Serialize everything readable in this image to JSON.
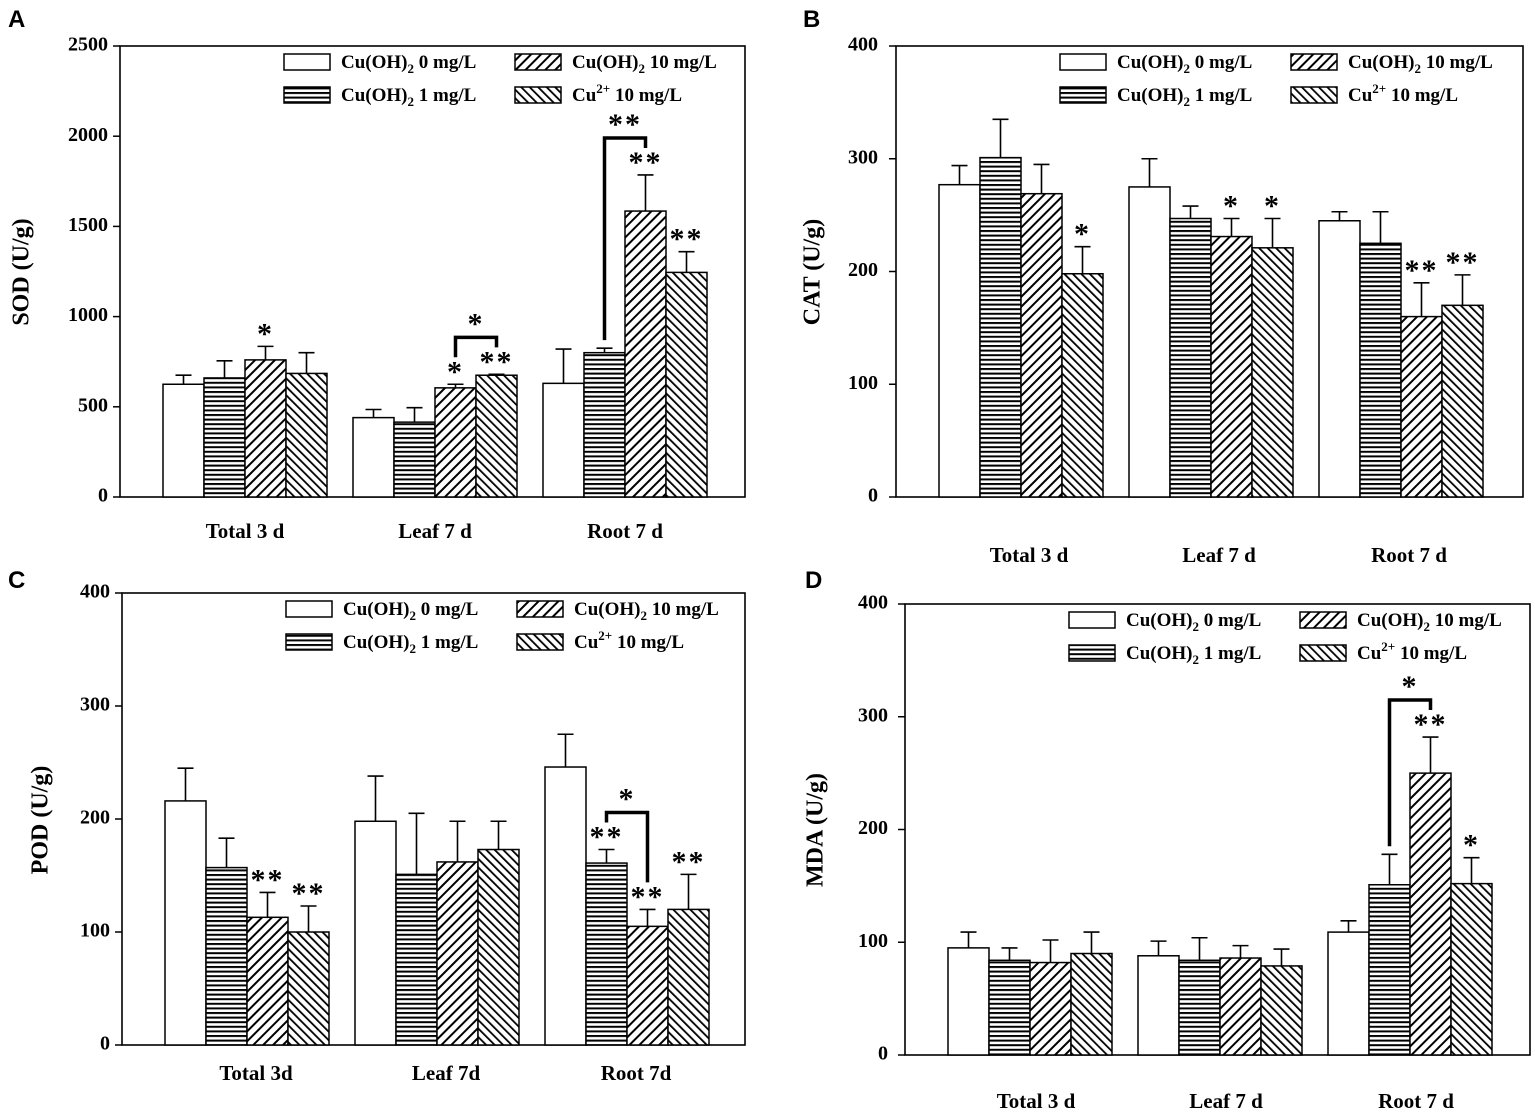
{
  "chart_data": [
    {
      "panel": "A",
      "type": "bar",
      "ylabel": "SOD (U/g)",
      "ylim": [
        0,
        2500
      ],
      "yticks": [
        0,
        500,
        1000,
        1500,
        2000,
        2500
      ],
      "grid": false,
      "categories": [
        "Total 3 d",
        "Leaf 7 d",
        "Root 7 d"
      ],
      "series": [
        {
          "label": {
            "main": "Cu(OH)",
            "sub": "2",
            "tail": " 0 mg/L"
          },
          "values": [
            625,
            440,
            630
          ],
          "errors": [
            50,
            45,
            190
          ],
          "marks": [
            null,
            null,
            null
          ]
        },
        {
          "label": {
            "main": "Cu(OH)",
            "sub": "2",
            "tail": " 1 mg/L"
          },
          "values": [
            660,
            415,
            800
          ],
          "errors": [
            95,
            80,
            25
          ],
          "marks": [
            null,
            null,
            null
          ]
        },
        {
          "label": {
            "main": "Cu(OH)",
            "sub": "2",
            "tail": " 10 mg/L"
          },
          "values": [
            760,
            605,
            1585
          ],
          "errors": [
            75,
            20,
            200
          ],
          "marks": [
            "*",
            "*",
            "**"
          ]
        },
        {
          "label": {
            "main": "Cu",
            "sup": "2+",
            "tail": " 10 mg/L"
          },
          "values": [
            685,
            675,
            1245
          ],
          "errors": [
            115,
            5,
            115
          ],
          "marks": [
            null,
            "**",
            "**"
          ]
        }
      ],
      "brackets": [
        {
          "category": 1,
          "from": 2,
          "to": 3,
          "label": "*"
        },
        {
          "category": 2,
          "from": 1,
          "to": 2,
          "label": "**"
        }
      ]
    },
    {
      "panel": "B",
      "type": "bar",
      "ylabel": "CAT (U/g)",
      "ylim": [
        0,
        400
      ],
      "yticks": [
        0,
        100,
        200,
        300,
        400
      ],
      "grid": false,
      "categories": [
        "Total 3 d",
        "Leaf 7 d",
        "Root 7 d"
      ],
      "series": [
        {
          "label": {
            "main": "Cu(OH)",
            "sub": "2",
            "tail": " 0 mg/L"
          },
          "values": [
            277,
            275,
            245
          ],
          "errors": [
            17,
            25,
            8
          ],
          "marks": [
            null,
            null,
            null
          ]
        },
        {
          "label": {
            "main": "Cu(OH)",
            "sub": "2",
            "tail": " 1 mg/L"
          },
          "values": [
            301,
            247,
            225
          ],
          "errors": [
            34,
            11,
            28
          ],
          "marks": [
            null,
            null,
            null
          ]
        },
        {
          "label": {
            "main": "Cu(OH)",
            "sub": "2",
            "tail": " 10 mg/L"
          },
          "values": [
            269,
            231,
            160
          ],
          "errors": [
            26,
            16,
            30
          ],
          "marks": [
            null,
            "*",
            "**"
          ]
        },
        {
          "label": {
            "main": "Cu",
            "sup": "2+",
            "tail": " 10 mg/L"
          },
          "values": [
            198,
            221,
            170
          ],
          "errors": [
            24,
            26,
            27
          ],
          "marks": [
            "*",
            "*",
            "**"
          ]
        }
      ],
      "brackets": []
    },
    {
      "panel": "C",
      "type": "bar",
      "ylabel": "POD (U/g)",
      "ylim": [
        0,
        400
      ],
      "yticks": [
        0,
        100,
        200,
        300,
        400
      ],
      "grid": false,
      "categories": [
        "Total 3d",
        "Leaf 7d",
        "Root 7d"
      ],
      "series": [
        {
          "label": {
            "main": "Cu(OH)",
            "sub": "2",
            "tail": " 0 mg/L"
          },
          "values": [
            216,
            198,
            246
          ],
          "errors": [
            29,
            40,
            29
          ],
          "marks": [
            null,
            null,
            null
          ]
        },
        {
          "label": {
            "main": "Cu(OH)",
            "sub": "2",
            "tail": " 1 mg/L"
          },
          "values": [
            157,
            151,
            161
          ],
          "errors": [
            26,
            54,
            12
          ],
          "marks": [
            null,
            null,
            "**"
          ]
        },
        {
          "label": {
            "main": "Cu(OH)",
            "sub": "2",
            "tail": " 10 mg/L"
          },
          "values": [
            113,
            162,
            105
          ],
          "errors": [
            22,
            36,
            15
          ],
          "marks": [
            "**",
            null,
            "**"
          ]
        },
        {
          "label": {
            "main": "Cu",
            "sup": "2+",
            "tail": " 10 mg/L"
          },
          "values": [
            100,
            173,
            120
          ],
          "errors": [
            23,
            25,
            31
          ],
          "marks": [
            "**",
            null,
            "**"
          ]
        }
      ],
      "brackets": [
        {
          "category": 2,
          "from": 1,
          "to": 2,
          "label": "*"
        }
      ]
    },
    {
      "panel": "D",
      "type": "bar",
      "ylabel": "MDA (U/g)",
      "ylim": [
        0,
        400
      ],
      "yticks": [
        0,
        100,
        200,
        300,
        400
      ],
      "grid": false,
      "categories": [
        "Total 3 d",
        "Leaf 7 d",
        "Root 7 d"
      ],
      "series": [
        {
          "label": {
            "main": "Cu(OH)",
            "sub": "2",
            "tail": " 0 mg/L"
          },
          "values": [
            95,
            88,
            109
          ],
          "errors": [
            14,
            13,
            10
          ],
          "marks": [
            null,
            null,
            null
          ]
        },
        {
          "label": {
            "main": "Cu(OH)",
            "sub": "2",
            "tail": " 1 mg/L"
          },
          "values": [
            84,
            84,
            151
          ],
          "errors": [
            11,
            20,
            27
          ],
          "marks": [
            null,
            null,
            null
          ]
        },
        {
          "label": {
            "main": "Cu(OH)",
            "sub": "2",
            "tail": " 10 mg/L"
          },
          "values": [
            82,
            86,
            250
          ],
          "errors": [
            20,
            11,
            32
          ],
          "marks": [
            null,
            null,
            "**"
          ]
        },
        {
          "label": {
            "main": "Cu",
            "sup": "2+",
            "tail": " 10 mg/L"
          },
          "values": [
            90,
            79,
            152
          ],
          "errors": [
            19,
            15,
            23
          ],
          "marks": [
            null,
            null,
            "*"
          ]
        }
      ],
      "brackets": [
        {
          "category": 2,
          "from": 1,
          "to": 2,
          "label": "*"
        }
      ]
    }
  ]
}
